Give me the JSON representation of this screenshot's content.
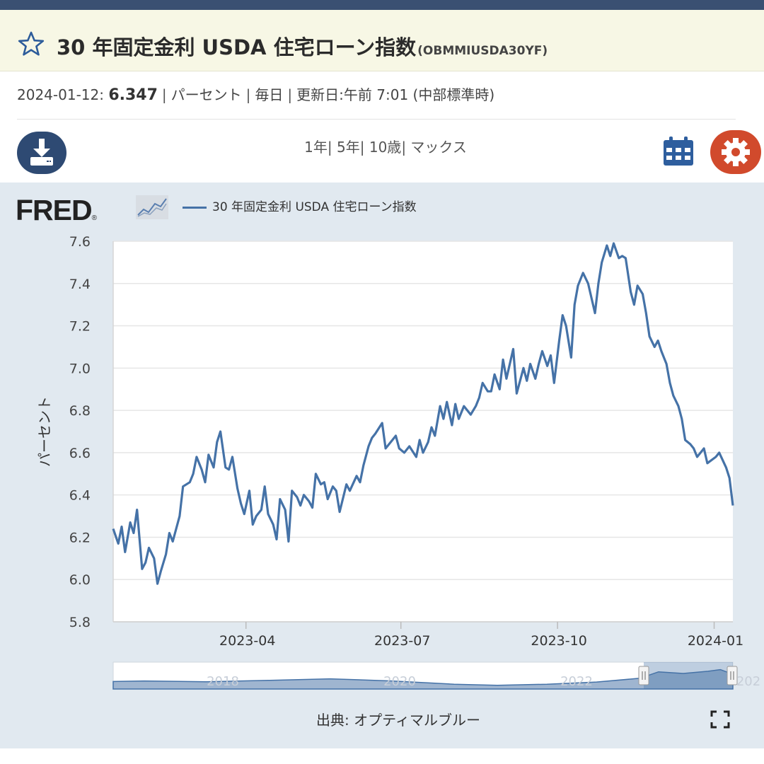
{
  "header": {
    "title": "30 年固定金利 USDA 住宅ローン指数",
    "series_id": "(OBMMIUSDA30YF)"
  },
  "meta": {
    "date": "2024-01-12:",
    "value": "6.347",
    "units": "パーセント",
    "frequency": "毎日",
    "updated": "更新日:午前 7:01 (中部標準時)"
  },
  "toolbar": {
    "range_1y": "1年",
    "range_5y": "5年",
    "range_10y": "10歳",
    "range_max": "マックス",
    "download_icon": "download-icon",
    "calendar_icon": "calendar-icon",
    "settings_icon": "gear-icon"
  },
  "branding": {
    "logo_text": "FRED",
    "logo_mark": "®"
  },
  "colors": {
    "series": "#4572a7",
    "panel": "#e1e9f0",
    "gear": "#d14a2c",
    "download": "#2e4a73"
  },
  "footer": {
    "source": "出典: オプティマルブルー"
  },
  "chart_data": {
    "type": "line",
    "ylabel": "パーセント",
    "ylim": [
      5.8,
      7.6
    ],
    "yticks": [
      "7.6",
      "7.4",
      "7.2",
      "7.0",
      "6.8",
      "6.6",
      "6.4",
      "6.2",
      "6.0",
      "5.8"
    ],
    "xlim": [
      "2023-01-13",
      "2024-01-12"
    ],
    "xticks": [
      {
        "label": "2023-04",
        "x": "2023-04-01"
      },
      {
        "label": "2023-07",
        "x": "2023-07-01"
      },
      {
        "label": "2023-10",
        "x": "2023-10-01"
      },
      {
        "label": "2024-01",
        "x": "2024-01-01"
      }
    ],
    "legend": "top-left",
    "grid": true,
    "series": [
      {
        "name": "30 年固定金利 USDA 住宅ローン指数",
        "points": [
          [
            "2023-01-13",
            6.24
          ],
          [
            "2023-01-16",
            6.17
          ],
          [
            "2023-01-18",
            6.25
          ],
          [
            "2023-01-20",
            6.13
          ],
          [
            "2023-01-23",
            6.27
          ],
          [
            "2023-01-25",
            6.22
          ],
          [
            "2023-01-27",
            6.33
          ],
          [
            "2023-01-30",
            6.05
          ],
          [
            "2023-02-01",
            6.08
          ],
          [
            "2023-02-03",
            6.15
          ],
          [
            "2023-02-06",
            6.1
          ],
          [
            "2023-02-08",
            5.98
          ],
          [
            "2023-02-10",
            6.04
          ],
          [
            "2023-02-13",
            6.12
          ],
          [
            "2023-02-15",
            6.22
          ],
          [
            "2023-02-17",
            6.18
          ],
          [
            "2023-02-21",
            6.3
          ],
          [
            "2023-02-23",
            6.44
          ],
          [
            "2023-02-27",
            6.46
          ],
          [
            "2023-03-01",
            6.5
          ],
          [
            "2023-03-03",
            6.58
          ],
          [
            "2023-03-06",
            6.52
          ],
          [
            "2023-03-08",
            6.46
          ],
          [
            "2023-03-10",
            6.59
          ],
          [
            "2023-03-13",
            6.53
          ],
          [
            "2023-03-15",
            6.65
          ],
          [
            "2023-03-17",
            6.7
          ],
          [
            "2023-03-20",
            6.53
          ],
          [
            "2023-03-22",
            6.52
          ],
          [
            "2023-03-24",
            6.58
          ],
          [
            "2023-03-27",
            6.43
          ],
          [
            "2023-03-29",
            6.36
          ],
          [
            "2023-03-31",
            6.31
          ],
          [
            "2023-04-03",
            6.42
          ],
          [
            "2023-04-05",
            6.26
          ],
          [
            "2023-04-07",
            6.3
          ],
          [
            "2023-04-10",
            6.33
          ],
          [
            "2023-04-12",
            6.44
          ],
          [
            "2023-04-14",
            6.31
          ],
          [
            "2023-04-17",
            6.26
          ],
          [
            "2023-04-19",
            6.19
          ],
          [
            "2023-04-21",
            6.38
          ],
          [
            "2023-04-24",
            6.33
          ],
          [
            "2023-04-26",
            6.18
          ],
          [
            "2023-04-28",
            6.42
          ],
          [
            "2023-05-01",
            6.39
          ],
          [
            "2023-05-03",
            6.35
          ],
          [
            "2023-05-05",
            6.4
          ],
          [
            "2023-05-08",
            6.37
          ],
          [
            "2023-05-10",
            6.34
          ],
          [
            "2023-05-12",
            6.5
          ],
          [
            "2023-05-15",
            6.45
          ],
          [
            "2023-05-17",
            6.46
          ],
          [
            "2023-05-19",
            6.38
          ],
          [
            "2023-05-22",
            6.44
          ],
          [
            "2023-05-24",
            6.42
          ],
          [
            "2023-05-26",
            6.32
          ],
          [
            "2023-05-30",
            6.45
          ],
          [
            "2023-06-01",
            6.42
          ],
          [
            "2023-06-05",
            6.49
          ],
          [
            "2023-06-07",
            6.46
          ],
          [
            "2023-06-09",
            6.54
          ],
          [
            "2023-06-12",
            6.63
          ],
          [
            "2023-06-14",
            6.67
          ],
          [
            "2023-06-16",
            6.69
          ],
          [
            "2023-06-20",
            6.74
          ],
          [
            "2023-06-22",
            6.62
          ],
          [
            "2023-06-26",
            6.66
          ],
          [
            "2023-06-28",
            6.68
          ],
          [
            "2023-06-30",
            6.62
          ],
          [
            "2023-07-03",
            6.6
          ],
          [
            "2023-07-06",
            6.63
          ],
          [
            "2023-07-10",
            6.58
          ],
          [
            "2023-07-12",
            6.66
          ],
          [
            "2023-07-14",
            6.6
          ],
          [
            "2023-07-17",
            6.65
          ],
          [
            "2023-07-19",
            6.72
          ],
          [
            "2023-07-21",
            6.68
          ],
          [
            "2023-07-24",
            6.82
          ],
          [
            "2023-07-26",
            6.76
          ],
          [
            "2023-07-28",
            6.84
          ],
          [
            "2023-07-31",
            6.73
          ],
          [
            "2023-08-02",
            6.83
          ],
          [
            "2023-08-04",
            6.76
          ],
          [
            "2023-08-07",
            6.82
          ],
          [
            "2023-08-09",
            6.8
          ],
          [
            "2023-08-11",
            6.78
          ],
          [
            "2023-08-14",
            6.82
          ],
          [
            "2023-08-16",
            6.86
          ],
          [
            "2023-08-18",
            6.93
          ],
          [
            "2023-08-21",
            6.89
          ],
          [
            "2023-08-23",
            6.89
          ],
          [
            "2023-08-25",
            6.97
          ],
          [
            "2023-08-28",
            6.9
          ],
          [
            "2023-08-30",
            7.04
          ],
          [
            "2023-09-01",
            6.95
          ],
          [
            "2023-09-05",
            7.09
          ],
          [
            "2023-09-07",
            6.88
          ],
          [
            "2023-09-11",
            7.0
          ],
          [
            "2023-09-13",
            6.94
          ],
          [
            "2023-09-15",
            7.02
          ],
          [
            "2023-09-18",
            6.95
          ],
          [
            "2023-09-20",
            7.02
          ],
          [
            "2023-09-22",
            7.08
          ],
          [
            "2023-09-25",
            7.01
          ],
          [
            "2023-09-27",
            7.06
          ],
          [
            "2023-09-29",
            6.93
          ],
          [
            "2023-10-02",
            7.13
          ],
          [
            "2023-10-04",
            7.25
          ],
          [
            "2023-10-06",
            7.2
          ],
          [
            "2023-10-09",
            7.05
          ],
          [
            "2023-10-11",
            7.3
          ],
          [
            "2023-10-13",
            7.39
          ],
          [
            "2023-10-16",
            7.45
          ],
          [
            "2023-10-19",
            7.4
          ],
          [
            "2023-10-23",
            7.26
          ],
          [
            "2023-10-25",
            7.4
          ],
          [
            "2023-10-27",
            7.5
          ],
          [
            "2023-10-30",
            7.58
          ],
          [
            "2023-11-01",
            7.53
          ],
          [
            "2023-11-03",
            7.59
          ],
          [
            "2023-11-06",
            7.52
          ],
          [
            "2023-11-08",
            7.53
          ],
          [
            "2023-11-10",
            7.52
          ],
          [
            "2023-11-13",
            7.36
          ],
          [
            "2023-11-15",
            7.3
          ],
          [
            "2023-11-17",
            7.39
          ],
          [
            "2023-11-20",
            7.35
          ],
          [
            "2023-11-22",
            7.26
          ],
          [
            "2023-11-24",
            7.15
          ],
          [
            "2023-11-27",
            7.1
          ],
          [
            "2023-11-29",
            7.13
          ],
          [
            "2023-12-01",
            7.08
          ],
          [
            "2023-12-04",
            7.02
          ],
          [
            "2023-12-06",
            6.93
          ],
          [
            "2023-12-08",
            6.87
          ],
          [
            "2023-12-11",
            6.82
          ],
          [
            "2023-12-13",
            6.76
          ],
          [
            "2023-12-15",
            6.66
          ],
          [
            "2023-12-18",
            6.64
          ],
          [
            "2023-12-20",
            6.62
          ],
          [
            "2023-12-22",
            6.58
          ],
          [
            "2023-12-26",
            6.62
          ],
          [
            "2023-12-28",
            6.55
          ],
          [
            "2024-01-02",
            6.58
          ],
          [
            "2024-01-04",
            6.6
          ],
          [
            "2024-01-08",
            6.53
          ],
          [
            "2024-01-10",
            6.48
          ],
          [
            "2024-01-12",
            6.35
          ]
        ]
      }
    ]
  },
  "navigator": {
    "tick_labels": [
      "2018",
      "2020",
      "2022",
      "202"
    ]
  }
}
